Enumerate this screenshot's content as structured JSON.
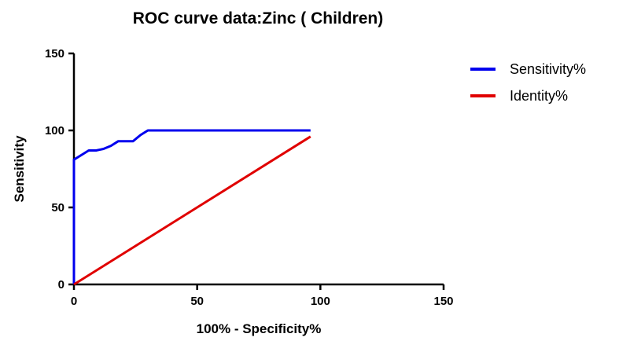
{
  "chart_data": {
    "type": "line",
    "title": "ROC curve data:Zinc ( Children)",
    "xlabel": "100% - Specificity%",
    "ylabel": "Sensitivity",
    "xlim": [
      0,
      150
    ],
    "ylim": [
      0,
      150
    ],
    "xticks": [
      "0",
      "50",
      "100",
      "150"
    ],
    "yticks": [
      "0",
      "50",
      "100",
      "150"
    ],
    "legend_position": "top-right",
    "grid": false,
    "series": [
      {
        "name": "Sensitivity%",
        "color": "#0000ee",
        "x": [
          0,
          0,
          3,
          6,
          9,
          12,
          15,
          18,
          21,
          24,
          27,
          30,
          50,
          75,
          96
        ],
        "y": [
          0,
          81,
          84,
          87,
          87,
          88,
          90,
          93,
          93,
          93,
          97,
          100,
          100,
          100,
          100
        ]
      },
      {
        "name": "Identity%",
        "color": "#e00000",
        "x": [
          0,
          96
        ],
        "y": [
          0,
          96
        ]
      }
    ]
  }
}
